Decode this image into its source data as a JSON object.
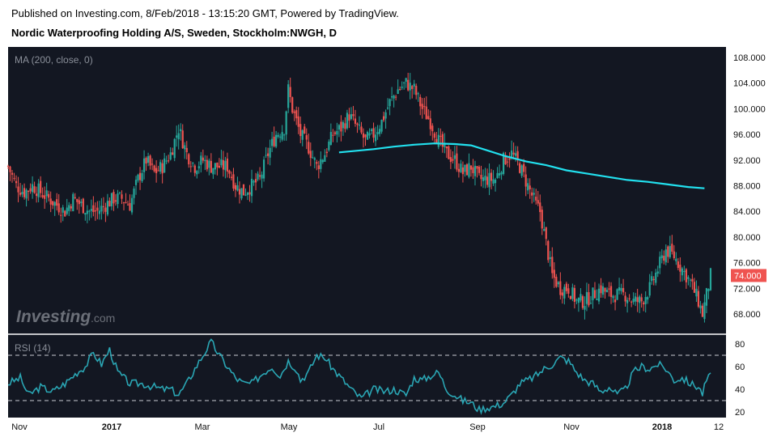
{
  "header": {
    "published": "Published on Investing.com, 8/Feb/2018 - 13:15:20 GMT, Powered by TradingView.",
    "symbol": "Nordic Waterproofing Holding A/S, Sweden, Stockholm:NWGH, D"
  },
  "watermark": {
    "brand": "Investing",
    "suffix": ".com"
  },
  "colors": {
    "background": "#131722",
    "up": "#26a69a",
    "down": "#ef5350",
    "ma": "#22e0ee",
    "rsi": "#2aa6b4",
    "last_price_tag": "#ef5350"
  },
  "chart_data": [
    {
      "type": "candlestick",
      "indicator_label": "MA (200, close, 0)",
      "ylim": [
        64,
        109
      ],
      "y_ticks": [
        "108.000",
        "104.000",
        "100.000",
        "96.000",
        "92.000",
        "88.000",
        "84.000",
        "80.000",
        "76.000",
        "72.000",
        "68.000"
      ],
      "y_tick_values": [
        108,
        104,
        100,
        96,
        92,
        88,
        84,
        80,
        76,
        72,
        68
      ],
      "last_price": 74.0,
      "last_price_label": "74.000",
      "x_ticks": [
        {
          "label": "Nov",
          "bold": false
        },
        {
          "label": "2017",
          "bold": true
        },
        {
          "label": "Mar",
          "bold": false
        },
        {
          "label": "May",
          "bold": false
        },
        {
          "label": "Jul",
          "bold": false
        },
        {
          "label": "Sep",
          "bold": false
        },
        {
          "label": "Nov",
          "bold": false
        },
        {
          "label": "2018",
          "bold": true
        },
        {
          "label": "12",
          "bold": false
        }
      ],
      "close_series": [
        [
          0,
          91
        ],
        [
          4,
          88
        ],
        [
          8,
          87
        ],
        [
          12,
          88
        ],
        [
          16,
          87
        ],
        [
          20,
          86
        ],
        [
          24,
          85
        ],
        [
          28,
          84
        ],
        [
          32,
          86
        ],
        [
          36,
          85
        ],
        [
          40,
          84
        ],
        [
          44,
          84
        ],
        [
          48,
          85
        ],
        [
          52,
          86
        ],
        [
          56,
          86
        ],
        [
          60,
          85
        ],
        [
          64,
          89
        ],
        [
          68,
          92
        ],
        [
          72,
          90
        ],
        [
          76,
          91
        ],
        [
          80,
          93
        ],
        [
          84,
          97
        ],
        [
          88,
          93
        ],
        [
          92,
          91
        ],
        [
          96,
          92
        ],
        [
          100,
          91
        ],
        [
          104,
          91
        ],
        [
          108,
          91
        ],
        [
          112,
          88
        ],
        [
          116,
          87
        ],
        [
          120,
          88
        ],
        [
          124,
          89
        ],
        [
          128,
          93
        ],
        [
          132,
          96
        ],
        [
          136,
          97
        ],
        [
          138,
          103
        ],
        [
          140,
          100
        ],
        [
          144,
          96
        ],
        [
          148,
          94
        ],
        [
          152,
          91
        ],
        [
          156,
          93
        ],
        [
          160,
          96
        ],
        [
          164,
          97
        ],
        [
          168,
          99
        ],
        [
          172,
          97
        ],
        [
          176,
          95
        ],
        [
          180,
          96
        ],
        [
          184,
          98
        ],
        [
          188,
          101
        ],
        [
          192,
          103
        ],
        [
          196,
          104
        ],
        [
          200,
          103
        ],
        [
          204,
          100
        ],
        [
          208,
          98
        ],
        [
          212,
          95
        ],
        [
          216,
          93
        ],
        [
          220,
          92
        ],
        [
          224,
          90
        ],
        [
          228,
          91
        ],
        [
          232,
          89
        ],
        [
          236,
          89
        ],
        [
          240,
          89
        ],
        [
          244,
          92
        ],
        [
          248,
          93
        ],
        [
          252,
          91
        ],
        [
          256,
          88
        ],
        [
          260,
          85
        ],
        [
          262,
          84
        ],
        [
          265,
          79
        ],
        [
          268,
          74
        ],
        [
          272,
          72
        ],
        [
          276,
          72
        ],
        [
          280,
          70
        ],
        [
          284,
          70
        ],
        [
          288,
          71
        ],
        [
          292,
          72
        ],
        [
          296,
          71
        ],
        [
          300,
          71
        ],
        [
          304,
          71
        ],
        [
          308,
          70
        ],
        [
          312,
          70
        ],
        [
          316,
          72
        ],
        [
          320,
          75
        ],
        [
          324,
          78
        ],
        [
          328,
          77
        ],
        [
          332,
          75
        ],
        [
          336,
          73
        ],
        [
          340,
          70
        ],
        [
          342,
          68
        ],
        [
          344,
          71
        ],
        [
          346,
          74
        ]
      ],
      "ma_series": [
        [
          163,
          93.2
        ],
        [
          170,
          93.4
        ],
        [
          180,
          93.7
        ],
        [
          190,
          94.1
        ],
        [
          200,
          94.4
        ],
        [
          210,
          94.6
        ],
        [
          220,
          94.5
        ],
        [
          228,
          94.3
        ],
        [
          235,
          93.6
        ],
        [
          245,
          92.6
        ],
        [
          255,
          91.8
        ],
        [
          265,
          91.2
        ],
        [
          275,
          90.4
        ],
        [
          285,
          89.9
        ],
        [
          295,
          89.4
        ],
        [
          305,
          88.9
        ],
        [
          315,
          88.6
        ],
        [
          325,
          88.2
        ],
        [
          335,
          87.8
        ],
        [
          343,
          87.6
        ]
      ]
    },
    {
      "type": "line",
      "indicator_label": "RSI (14)",
      "ylim": [
        15,
        85
      ],
      "y_ticks": [
        "80",
        "60",
        "40",
        "20"
      ],
      "y_tick_values": [
        80,
        60,
        40,
        20
      ],
      "bands": [
        70,
        30
      ],
      "series": [
        {
          "values": [
            [
              0,
              45
            ],
            [
              6,
              50
            ],
            [
              10,
              35
            ],
            [
              16,
              42
            ],
            [
              22,
              38
            ],
            [
              28,
              45
            ],
            [
              34,
              55
            ],
            [
              38,
              60
            ],
            [
              42,
              72
            ],
            [
              46,
              62
            ],
            [
              50,
              75
            ],
            [
              54,
              55
            ],
            [
              60,
              45
            ],
            [
              66,
              45
            ],
            [
              72,
              42
            ],
            [
              76,
              40
            ],
            [
              80,
              40
            ],
            [
              84,
              35
            ],
            [
              88,
              45
            ],
            [
              92,
              58
            ],
            [
              96,
              70
            ],
            [
              100,
              82
            ],
            [
              104,
              70
            ],
            [
              108,
              60
            ],
            [
              112,
              50
            ],
            [
              116,
              45
            ],
            [
              120,
              45
            ],
            [
              126,
              55
            ],
            [
              130,
              60
            ],
            [
              134,
              52
            ],
            [
              138,
              65
            ],
            [
              142,
              58
            ],
            [
              144,
              48
            ],
            [
              148,
              55
            ],
            [
              152,
              70
            ],
            [
              156,
              68
            ],
            [
              160,
              58
            ],
            [
              164,
              50
            ],
            [
              168,
              42
            ],
            [
              170,
              38
            ],
            [
              174,
              32
            ],
            [
              180,
              40
            ],
            [
              186,
              38
            ],
            [
              190,
              40
            ],
            [
              196,
              35
            ],
            [
              200,
              50
            ],
            [
              204,
              48
            ],
            [
              208,
              52
            ],
            [
              212,
              55
            ],
            [
              216,
              40
            ],
            [
              220,
              35
            ],
            [
              224,
              30
            ],
            [
              228,
              28
            ],
            [
              232,
              22
            ],
            [
              236,
              24
            ],
            [
              240,
              25
            ],
            [
              244,
              28
            ],
            [
              248,
              35
            ],
            [
              252,
              45
            ],
            [
              256,
              48
            ],
            [
              260,
              52
            ],
            [
              264,
              58
            ],
            [
              268,
              62
            ],
            [
              272,
              68
            ],
            [
              276,
              65
            ],
            [
              280,
              55
            ],
            [
              284,
              48
            ],
            [
              288,
              45
            ],
            [
              292,
              38
            ],
            [
              296,
              42
            ],
            [
              300,
              35
            ],
            [
              304,
              40
            ],
            [
              308,
              55
            ],
            [
              312,
              60
            ],
            [
              316,
              58
            ],
            [
              320,
              62
            ],
            [
              324,
              58
            ],
            [
              328,
              48
            ],
            [
              332,
              50
            ],
            [
              336,
              45
            ],
            [
              340,
              42
            ],
            [
              342,
              36
            ],
            [
              344,
              48
            ],
            [
              346,
              52
            ]
          ]
        }
      ]
    }
  ]
}
